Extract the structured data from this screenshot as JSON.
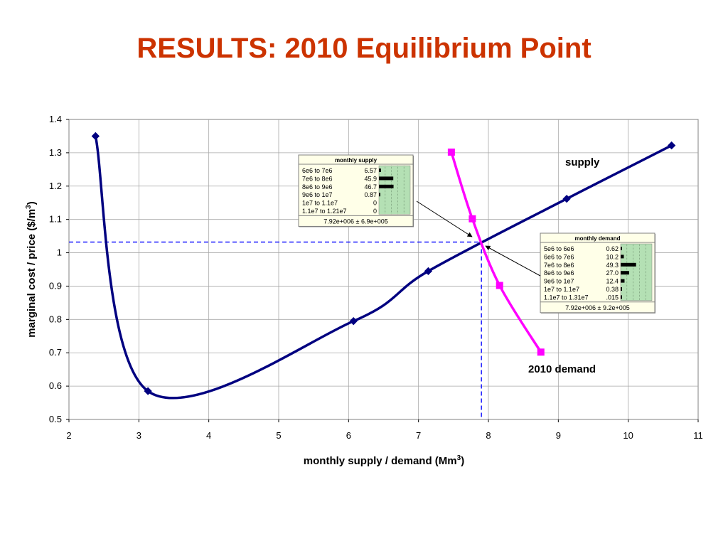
{
  "slide": {
    "title": "RESULTS: 2010 Equilibrium Point"
  },
  "chart_data": {
    "type": "line",
    "xlabel": "monthly supply / demand (Mm",
    "xlabel_sup": "3",
    "xlabel_end": ")",
    "ylabel": "marginal cost / price ($/m",
    "ylabel_sup": "3",
    "ylabel_end": ")",
    "xlim": [
      2,
      11
    ],
    "ylim": [
      0.5,
      1.4
    ],
    "xticks": [
      2,
      3,
      4,
      5,
      6,
      7,
      8,
      9,
      10,
      11
    ],
    "yticks": [
      0.5,
      0.6,
      0.7,
      0.8,
      0.9,
      1,
      1.1,
      1.2,
      1.3,
      1.4
    ],
    "ytick_labels": [
      "0.5",
      "0.6",
      "0.7",
      "0.8",
      "0.9",
      "1",
      "1.1",
      "1.2",
      "1.3",
      "1.4"
    ],
    "grid": true,
    "series": [
      {
        "name": "supply",
        "color": "#000080",
        "marker": "diamond",
        "x": [
          2.38,
          3.13,
          6.07,
          7.14,
          9.12,
          10.62
        ],
        "y": [
          1.35,
          0.585,
          0.795,
          0.945,
          1.162,
          1.322
        ]
      },
      {
        "name": "2010 demand",
        "color": "#ff00ff",
        "marker": "square",
        "x": [
          7.47,
          7.77,
          8.16,
          8.75
        ],
        "y": [
          1.302,
          1.102,
          0.902,
          0.702
        ]
      }
    ],
    "equilibrium": {
      "x": 7.9,
      "y": 1.032
    },
    "supply_distribution": {
      "title": "monthly supply",
      "rows": [
        {
          "range": "6e6 to 7e6",
          "value": "6.57",
          "pct": 6.57
        },
        {
          "range": "7e6 to 8e6",
          "value": "45.9",
          "pct": 45.9
        },
        {
          "range": "8e6 to 9e6",
          "value": "46.7",
          "pct": 46.7
        },
        {
          "range": "9e6 to 1e7",
          "value": "0.87",
          "pct": 0.87
        },
        {
          "range": "1e7 to 1.1e7",
          "value": "0",
          "pct": 0
        },
        {
          "range": "1.1e7 to 1.21e7",
          "value": "0",
          "pct": 0
        }
      ],
      "footer": "7.92e+006 ± 6.9e+005"
    },
    "demand_distribution": {
      "title": "monthly demand",
      "rows": [
        {
          "range": "5e6 to 6e6",
          "value": "0.62",
          "pct": 0.62
        },
        {
          "range": "6e6 to 7e6",
          "value": "10.2",
          "pct": 10.2
        },
        {
          "range": "7e6 to 8e6",
          "value": "49.3",
          "pct": 49.3
        },
        {
          "range": "8e6 to 9e6",
          "value": "27.0",
          "pct": 27.0
        },
        {
          "range": "9e6 to 1e7",
          "value": "12.4",
          "pct": 12.4
        },
        {
          "range": "1e7 to 1.1e7",
          "value": "0.38",
          "pct": 0.38
        },
        {
          "range": "1.1e7 to 1.31e7",
          "value": ".015",
          "pct": 0.015
        }
      ],
      "footer": "7.92e+006 ± 9.2e+005"
    }
  }
}
